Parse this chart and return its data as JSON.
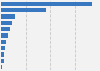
{
  "values": [
    93,
    46,
    14,
    11,
    9,
    7,
    5.5,
    4.5,
    3.5,
    2.8,
    1.5
  ],
  "bar_color": "#3878c0",
  "background_color": "#f2f2f2",
  "grid_color": "#c8c8c8",
  "xlim": [
    0,
    100
  ],
  "bar_height": 0.65
}
